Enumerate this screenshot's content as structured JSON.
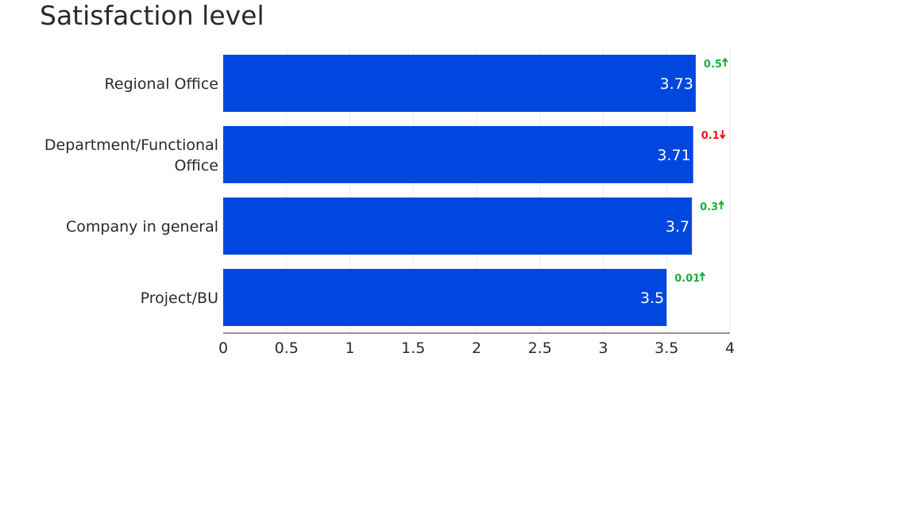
{
  "chart_data": {
    "type": "bar",
    "orientation": "horizontal",
    "title": "Satisfaction level",
    "categories": [
      "Regional Office",
      "Department/Functional Office",
      "Company in general",
      "Project/BU"
    ],
    "category_label_lines": [
      [
        "Regional Office"
      ],
      [
        "Department/Functional",
        "Office"
      ],
      [
        "Company in general"
      ],
      [
        "Project/BU"
      ]
    ],
    "values": [
      3.73,
      3.71,
      3.7,
      3.5
    ],
    "value_labels": [
      "3.73",
      "3.71",
      "3.7",
      "3.5"
    ],
    "changes": [
      {
        "text": "0.5",
        "direction": "up"
      },
      {
        "text": "0.1",
        "direction": "down"
      },
      {
        "text": "0.3",
        "direction": "up"
      },
      {
        "text": "0.01",
        "direction": "up"
      }
    ],
    "xlim": [
      0,
      4
    ],
    "xticks": [
      0,
      0.5,
      1,
      1.5,
      2,
      2.5,
      3,
      3.5,
      4
    ],
    "xtick_labels": [
      "0",
      "0.5",
      "1",
      "1.5",
      "2",
      "2.5",
      "3",
      "3.5",
      "4"
    ],
    "grid": true,
    "colors": {
      "bar": "#0047e0",
      "up": "#1fae3e",
      "down": "#f01818",
      "grid": "#ebebeb",
      "axis": "#2a2a2a"
    }
  }
}
